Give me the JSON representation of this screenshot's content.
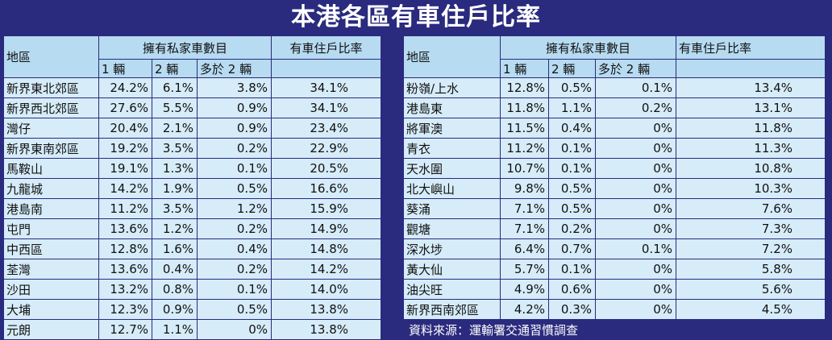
{
  "title": "本港各區有車住戶比率",
  "headers": {
    "district": "地區",
    "ownership": "擁有私家車數目",
    "rate": "有車住戶比率",
    "sub": [
      "1 輛",
      "2 輛",
      "多於 2 輛"
    ]
  },
  "source_note": "資料來源：運輸署交通習慣調查",
  "chart_data": {
    "type": "table",
    "title": "本港各區有車住戶比率",
    "columns": [
      "地區",
      "1 輛",
      "2 輛",
      "多於 2 輛",
      "有車住戶比率"
    ],
    "left_rows": [
      [
        "新界東北郊區",
        "24.2%",
        "6.1%",
        "3.8%",
        "34.1%"
      ],
      [
        "新界西北郊區",
        "27.6%",
        "5.5%",
        "0.9%",
        "34.1%"
      ],
      [
        "灣仔",
        "20.4%",
        "2.1%",
        "0.9%",
        "23.4%"
      ],
      [
        "新界東南郊區",
        "19.2%",
        "3.5%",
        "0.2%",
        "22.9%"
      ],
      [
        "馬鞍山",
        "19.1%",
        "1.3%",
        "0.1%",
        "20.5%"
      ],
      [
        "九龍城",
        "14.2%",
        "1.9%",
        "0.5%",
        "16.6%"
      ],
      [
        "港島南",
        "11.2%",
        "3.5%",
        "1.2%",
        "15.9%"
      ],
      [
        "屯門",
        "13.6%",
        "1.2%",
        "0.2%",
        "14.9%"
      ],
      [
        "中西區",
        "12.8%",
        "1.6%",
        "0.4%",
        "14.8%"
      ],
      [
        "荃灣",
        "13.6%",
        "0.4%",
        "0.2%",
        "14.2%"
      ],
      [
        "沙田",
        "13.2%",
        "0.8%",
        "0.1%",
        "14.0%"
      ],
      [
        "大埔",
        "12.3%",
        "0.9%",
        "0.5%",
        "13.8%"
      ],
      [
        "元朗",
        "12.7%",
        "1.1%",
        "0%",
        "13.8%"
      ]
    ],
    "right_rows": [
      [
        "粉嶺/上水",
        "12.8%",
        "0.5%",
        "0.1%",
        "13.4%"
      ],
      [
        "港島東",
        "11.8%",
        "1.1%",
        "0.2%",
        "13.1%"
      ],
      [
        "將軍澳",
        "11.5%",
        "0.4%",
        "0%",
        "11.8%"
      ],
      [
        "青衣",
        "11.2%",
        "0.1%",
        "0%",
        "11.3%"
      ],
      [
        "天水圍",
        "10.7%",
        "0.1%",
        "0%",
        "10.8%"
      ],
      [
        "北大嶼山",
        "9.8%",
        "0.5%",
        "0%",
        "10.3%"
      ],
      [
        "葵涌",
        "7.1%",
        "0.5%",
        "0%",
        "7.6%"
      ],
      [
        "觀塘",
        "7.1%",
        "0.2%",
        "0%",
        "7.3%"
      ],
      [
        "深水埗",
        "6.4%",
        "0.7%",
        "0.1%",
        "7.2%"
      ],
      [
        "黃大仙",
        "5.7%",
        "0.1%",
        "0%",
        "5.8%"
      ],
      [
        "油尖旺",
        "4.9%",
        "0.6%",
        "0%",
        "5.6%"
      ],
      [
        "新界西南郊區",
        "4.2%",
        "0.3%",
        "0%",
        "4.5%"
      ]
    ]
  }
}
